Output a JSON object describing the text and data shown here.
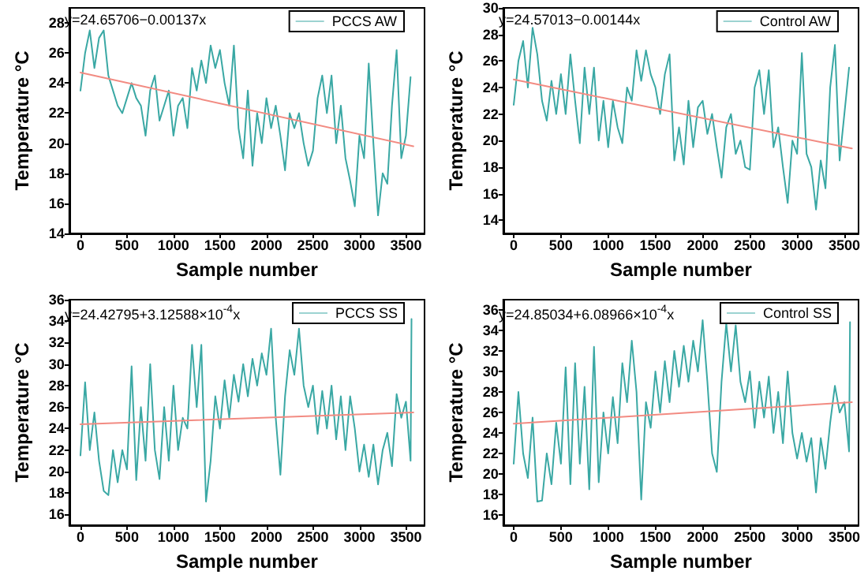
{
  "chart_data": [
    {
      "type": "line",
      "xlabel": "Sample number",
      "ylabel": "Temperature °C",
      "xlim": [
        -120,
        3700
      ],
      "ylim": [
        14,
        29
      ],
      "xticks": [
        0,
        500,
        1000,
        1500,
        2000,
        2500,
        3000,
        3500
      ],
      "yticks": [
        14,
        16,
        18,
        20,
        22,
        24,
        26,
        28
      ],
      "grid": false,
      "legend": "top right",
      "marker": "none",
      "line_style": "solid",
      "annotations": [
        "y=24.65706−0.00137x"
      ],
      "series": [
        {
          "name": "PCCS AW",
          "color": "#3aa8a4",
          "x": [
            0,
            50,
            100,
            150,
            200,
            250,
            300,
            350,
            400,
            450,
            500,
            550,
            600,
            650,
            700,
            750,
            800,
            850,
            900,
            950,
            1000,
            1050,
            1100,
            1150,
            1200,
            1250,
            1300,
            1350,
            1400,
            1450,
            1500,
            1550,
            1600,
            1650,
            1700,
            1750,
            1800,
            1850,
            1900,
            1950,
            2000,
            2050,
            2100,
            2150,
            2200,
            2250,
            2300,
            2350,
            2400,
            2450,
            2500,
            2550,
            2600,
            2650,
            2700,
            2750,
            2800,
            2850,
            2900,
            2950,
            3000,
            3050,
            3100,
            3150,
            3200,
            3250,
            3300,
            3350,
            3400,
            3450,
            3500,
            3550
          ],
          "values": [
            23.5,
            26,
            27.5,
            25,
            27,
            27.5,
            24.5,
            23.5,
            22.5,
            22,
            23,
            24,
            23,
            22.5,
            20.5,
            23.5,
            24.5,
            21.5,
            22.5,
            23.5,
            20.5,
            22.5,
            23,
            21,
            25,
            23.5,
            25.5,
            24,
            26.5,
            25,
            26.2,
            24,
            22.5,
            26.5,
            21,
            19,
            23.5,
            18.5,
            22,
            20,
            23,
            21,
            22.5,
            20.5,
            18.2,
            22,
            21,
            22,
            20,
            18.5,
            19.5,
            23,
            24.5,
            22,
            24.5,
            20,
            22.5,
            19,
            17.5,
            15.8,
            20.5,
            19,
            25.3,
            20,
            15.2,
            18,
            17.3,
            22.5,
            26.2,
            19,
            20.5,
            24.4
          ]
        },
        {
          "type": "line",
          "color": "#f28b82",
          "x": [
            0,
            3580
          ],
          "values": [
            24.7,
            19.8
          ]
        }
      ]
    },
    {
      "type": "line",
      "xlabel": "Sample number",
      "ylabel": "Temperature °C",
      "xlim": [
        -110,
        3650
      ],
      "ylim": [
        13,
        30
      ],
      "xticks": [
        0,
        500,
        1000,
        1500,
        2000,
        2500,
        3000,
        3500
      ],
      "yticks": [
        14,
        16,
        18,
        20,
        22,
        24,
        26,
        28,
        30
      ],
      "grid": false,
      "legend": "top right",
      "marker": "none",
      "line_style": "solid",
      "annotations": [
        "y=24.57013−0.00144x"
      ],
      "series": [
        {
          "name": "Control AW",
          "color": "#3aa8a4",
          "x": [
            0,
            50,
            100,
            150,
            200,
            250,
            300,
            350,
            400,
            450,
            500,
            550,
            600,
            650,
            700,
            750,
            800,
            850,
            900,
            950,
            1000,
            1050,
            1100,
            1150,
            1200,
            1250,
            1300,
            1350,
            1400,
            1450,
            1500,
            1550,
            1600,
            1650,
            1700,
            1750,
            1800,
            1850,
            1900,
            1950,
            2000,
            2050,
            2100,
            2150,
            2200,
            2250,
            2300,
            2350,
            2400,
            2450,
            2500,
            2550,
            2600,
            2650,
            2700,
            2750,
            2800,
            2850,
            2900,
            2950,
            3000,
            3050,
            3100,
            3150,
            3200,
            3250,
            3300,
            3350,
            3400,
            3450,
            3500,
            3550
          ],
          "values": [
            22.7,
            26,
            27.5,
            24,
            28.5,
            26.5,
            23,
            21.5,
            24.5,
            22,
            25,
            22,
            26.5,
            23,
            19.8,
            25.5,
            22,
            25.5,
            20,
            23,
            19.5,
            23,
            21,
            19.8,
            24,
            23,
            26.8,
            24.5,
            26.8,
            25,
            24,
            22,
            25,
            26.5,
            18.5,
            21,
            18.2,
            23,
            19.5,
            22.5,
            23,
            20.5,
            22,
            19.5,
            17.2,
            21,
            22,
            19,
            20,
            18,
            17.8,
            24,
            25.3,
            22,
            25.3,
            19.5,
            21,
            18,
            15.3,
            20,
            19,
            26.6,
            19,
            18,
            14.8,
            18.5,
            16.4,
            24,
            27.2,
            18.5,
            22,
            25.5
          ]
        },
        {
          "type": "line",
          "color": "#f28b82",
          "x": [
            0,
            3580
          ],
          "values": [
            24.6,
            19.4
          ]
        }
      ]
    },
    {
      "type": "line",
      "xlabel": "Sample number",
      "ylabel": "Temperature °C",
      "xlim": [
        -120,
        3700
      ],
      "ylim": [
        15,
        36
      ],
      "xticks": [
        0,
        500,
        1000,
        1500,
        2000,
        2500,
        3000,
        3500
      ],
      "yticks": [
        16,
        18,
        20,
        22,
        24,
        26,
        28,
        30,
        32,
        34,
        36
      ],
      "grid": false,
      "legend": "top right",
      "marker": "none",
      "line_style": "solid",
      "annotations": [
        "y=24.42795+3.12588×10$^{-4}$x"
      ],
      "series": [
        {
          "name": "PCCS SS",
          "color": "#3aa8a4",
          "x": [
            0,
            50,
            100,
            150,
            200,
            250,
            300,
            350,
            400,
            450,
            500,
            550,
            600,
            650,
            700,
            750,
            800,
            850,
            900,
            950,
            1000,
            1050,
            1100,
            1150,
            1200,
            1250,
            1300,
            1350,
            1400,
            1450,
            1500,
            1550,
            1600,
            1650,
            1700,
            1750,
            1800,
            1850,
            1900,
            1950,
            2000,
            2050,
            2100,
            2150,
            2200,
            2250,
            2300,
            2350,
            2400,
            2450,
            2500,
            2550,
            2600,
            2650,
            2700,
            2750,
            2800,
            2850,
            2900,
            2950,
            3000,
            3050,
            3100,
            3150,
            3200,
            3250,
            3300,
            3350,
            3400,
            3450,
            3500,
            3550,
            3560
          ],
          "values": [
            21.5,
            28.3,
            22,
            25.5,
            21,
            18.2,
            17.8,
            22,
            19,
            22,
            20.2,
            29.8,
            19.2,
            26,
            21,
            30,
            22,
            19.3,
            26,
            21,
            28,
            22,
            25,
            24,
            31.8,
            26,
            31.8,
            17.2,
            21,
            27,
            24,
            28.5,
            25,
            29,
            26.5,
            30,
            27,
            30.5,
            28,
            31,
            29,
            33.3,
            25,
            19.7,
            27,
            31.3,
            29,
            33.3,
            28,
            26,
            28,
            23.5,
            27.5,
            24,
            28,
            23,
            27,
            22,
            27,
            24,
            20,
            22.5,
            19.5,
            22.5,
            18.8,
            22,
            23.6,
            20.5,
            27.2,
            25,
            26.5,
            21,
            34.2
          ]
        },
        {
          "type": "line",
          "color": "#f28b82",
          "x": [
            0,
            3580
          ],
          "values": [
            24.4,
            25.5
          ]
        }
      ]
    },
    {
      "type": "line",
      "xlabel": "Sample number",
      "ylabel": "Temperature °C",
      "xlim": [
        -110,
        3650
      ],
      "ylim": [
        15,
        37
      ],
      "xticks": [
        0,
        500,
        1000,
        1500,
        2000,
        2500,
        3000,
        3500
      ],
      "yticks": [
        16,
        18,
        20,
        22,
        24,
        26,
        28,
        30,
        32,
        34,
        36
      ],
      "grid": false,
      "legend": "top right",
      "marker": "none",
      "line_style": "solid",
      "annotations": [
        "y=24.85034+6.08966×10$^{-4}$x"
      ],
      "series": [
        {
          "name": "Control SS",
          "color": "#3aa8a4",
          "x": [
            0,
            50,
            100,
            150,
            200,
            250,
            300,
            350,
            400,
            450,
            500,
            550,
            600,
            650,
            700,
            750,
            800,
            850,
            900,
            950,
            1000,
            1050,
            1100,
            1150,
            1200,
            1250,
            1300,
            1350,
            1400,
            1450,
            1500,
            1550,
            1600,
            1650,
            1700,
            1750,
            1800,
            1850,
            1900,
            1950,
            2000,
            2050,
            2100,
            2150,
            2200,
            2250,
            2300,
            2350,
            2400,
            2450,
            2500,
            2550,
            2600,
            2650,
            2700,
            2750,
            2800,
            2850,
            2900,
            2950,
            3000,
            3050,
            3100,
            3150,
            3200,
            3250,
            3300,
            3350,
            3400,
            3450,
            3500,
            3550,
            3560
          ],
          "values": [
            21,
            28,
            22,
            19.6,
            25.5,
            17.3,
            17.4,
            22,
            19,
            25,
            21,
            30.4,
            19,
            30.8,
            21,
            28.5,
            18.5,
            32.4,
            19.2,
            26,
            22,
            27.5,
            23,
            30.8,
            27,
            33,
            28,
            17.5,
            27,
            24.5,
            30,
            26,
            31,
            27,
            32,
            28.5,
            32.5,
            29,
            33,
            30,
            35,
            29,
            22,
            20.2,
            29,
            34.7,
            30,
            34.5,
            29,
            27,
            30,
            24.5,
            29,
            25.5,
            29.5,
            24,
            28,
            23,
            30,
            24,
            21.5,
            24,
            21.2,
            23.5,
            18.2,
            23.5,
            20.5,
            25,
            28.6,
            26,
            27,
            22.2,
            34.8
          ]
        },
        {
          "type": "line",
          "color": "#f28b82",
          "x": [
            0,
            3580
          ],
          "values": [
            24.9,
            27.0
          ]
        }
      ]
    }
  ]
}
